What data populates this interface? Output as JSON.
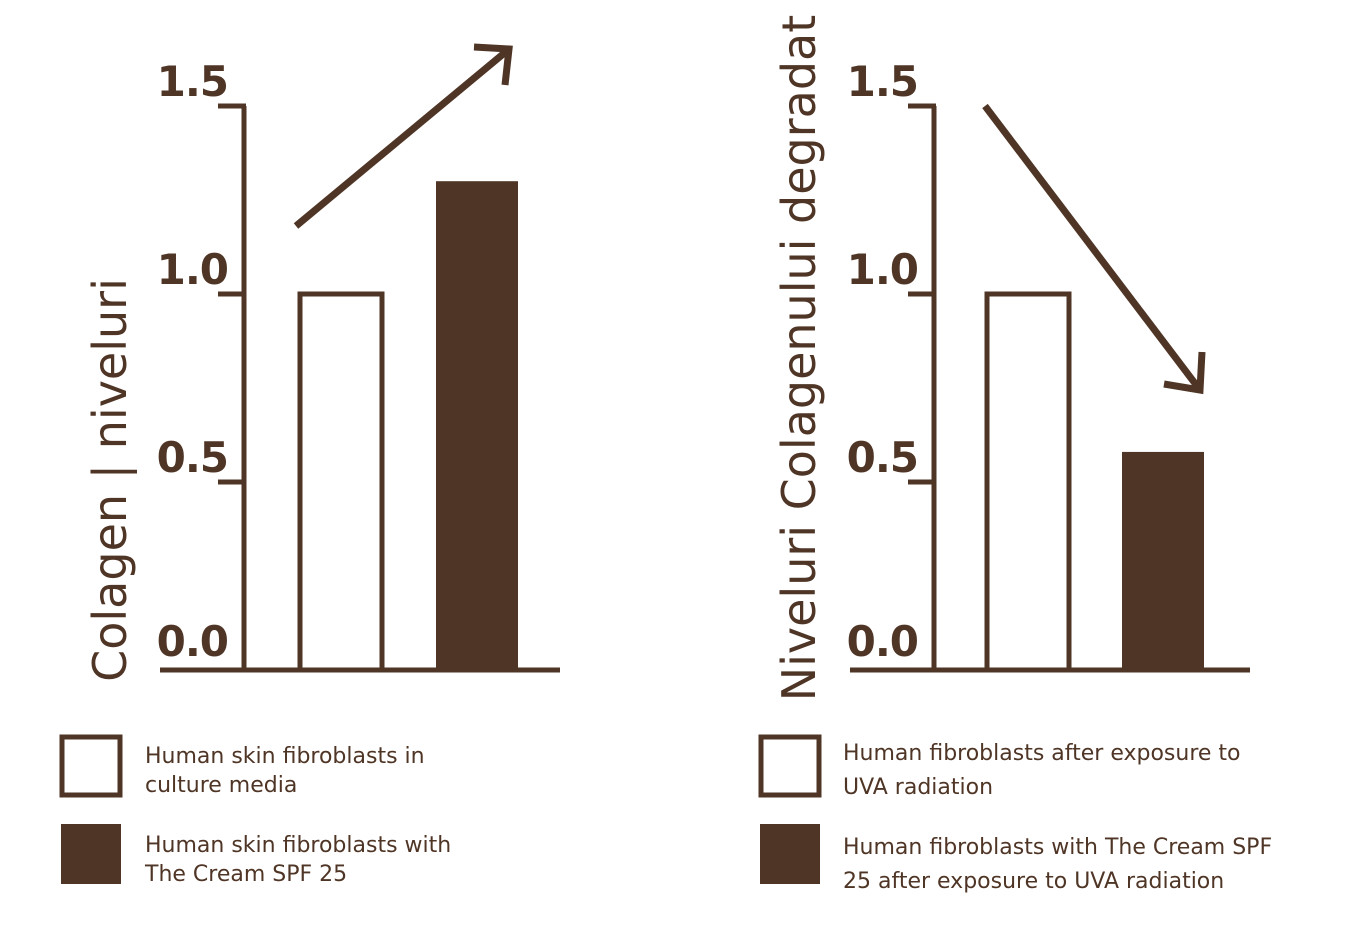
{
  "colors": {
    "brand_brown": "#4f3525",
    "background": "#ffffff"
  },
  "chart_data": [
    {
      "type": "bar",
      "ylabel": "Colagen | niveluri",
      "ylim": [
        0,
        1.5
      ],
      "yticks": [
        "0.0",
        "0.5",
        "1.0",
        "1.5"
      ],
      "ytick_values": [
        0,
        0.5,
        1.0,
        1.5
      ],
      "grid": false,
      "trend_arrow": "up",
      "categories": [
        "Human skin fibroblasts in culture media",
        "Human skin fibroblasts with The Cream SPF 25"
      ],
      "values": [
        1.0,
        1.3
      ],
      "bar_styles": [
        "outline",
        "filled"
      ],
      "legend": [
        {
          "lines": [
            "Human skin fibroblasts in",
            "culture media"
          ],
          "style": "outline"
        },
        {
          "lines": [
            "Human skin fibroblasts with",
            "The Cream SPF 25"
          ],
          "style": "filled"
        }
      ]
    },
    {
      "type": "bar",
      "ylabel": "Niveluri Colagenului degradat",
      "ylim": [
        0,
        1.5
      ],
      "yticks": [
        "0.0",
        "0.5",
        "1.0",
        "1.5"
      ],
      "ytick_values": [
        0,
        0.5,
        1.0,
        1.5
      ],
      "grid": false,
      "trend_arrow": "down",
      "categories": [
        "Human fibroblasts after exposure to UVA radiation",
        "Human fibroblasts with The Cream SPF 25 after exposure to UVA radiation"
      ],
      "values": [
        1.0,
        0.58
      ],
      "bar_styles": [
        "outline",
        "filled"
      ],
      "legend": [
        {
          "lines": [
            "Human fibroblasts after exposure to",
            "UVA radiation"
          ],
          "style": "outline"
        },
        {
          "lines": [
            "Human fibroblasts with The Cream SPF",
            "25 after exposure to UVA radiation"
          ],
          "style": "filled"
        }
      ]
    }
  ]
}
